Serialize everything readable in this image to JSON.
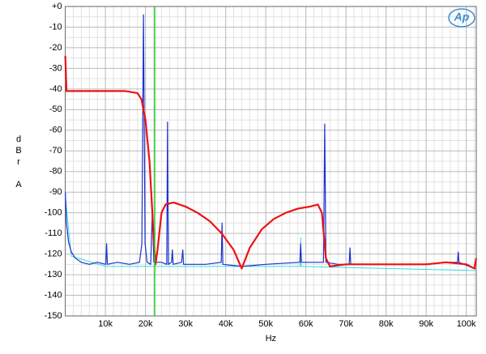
{
  "chart_data": {
    "type": "line",
    "xlabel": "Hz",
    "ylabel": "dBr A",
    "logo": "Ap",
    "xlim": [
      0,
      102500
    ],
    "ylim": [
      -150,
      0
    ],
    "xticks": [
      {
        "value": 10000,
        "label": "10k"
      },
      {
        "value": 20000,
        "label": "20k"
      },
      {
        "value": 30000,
        "label": "30k"
      },
      {
        "value": 40000,
        "label": "40k"
      },
      {
        "value": 50000,
        "label": "50k"
      },
      {
        "value": 60000,
        "label": "60k"
      },
      {
        "value": 70000,
        "label": "70k"
      },
      {
        "value": 80000,
        "label": "80k"
      },
      {
        "value": 90000,
        "label": "90k"
      },
      {
        "value": 100000,
        "label": "100k"
      }
    ],
    "yticks": [
      {
        "value": 0,
        "label": "+0"
      },
      -10,
      -20,
      -30,
      -40,
      -50,
      -60,
      -70,
      -80,
      -90,
      -100,
      -110,
      -120,
      -130,
      -140,
      -150
    ],
    "grid": true,
    "marker_line": {
      "value": 22300,
      "color": "#22cc22"
    },
    "series": [
      {
        "color": "#33dddd",
        "width": 1,
        "x": [
          0,
          1500,
          10000,
          50000,
          58600,
          58700,
          58800,
          102500
        ],
        "values": [
          -92,
          -121,
          -126,
          -126,
          -126,
          -112,
          -126,
          -128
        ]
      },
      {
        "color": "#1a2fd0",
        "width": 1.2,
        "x": [
          0,
          300,
          800,
          1500,
          2500,
          4000,
          6000,
          8000,
          10100,
          10300,
          10500,
          13000,
          16000,
          18500,
          19100,
          19500,
          19900,
          20400,
          21300,
          21700,
          22100,
          24000,
          25300,
          25500,
          25700,
          26500,
          26700,
          26900,
          29000,
          29300,
          29500,
          35000,
          38900,
          39100,
          39300,
          44000,
          50000,
          58500,
          58700,
          58900,
          64400,
          64700,
          65000,
          68000,
          70800,
          71000,
          71200,
          80000,
          90000,
          95000,
          97800,
          98000,
          98200,
          102000,
          102500
        ],
        "values": [
          -90,
          -105,
          -114,
          -119,
          -122,
          -124,
          -125,
          -124,
          -125,
          -115,
          -125,
          -124,
          -125,
          -124,
          -115,
          -4,
          -115,
          -124,
          -125,
          -100,
          -124,
          -124,
          -125,
          -56,
          -125,
          -124,
          -118,
          -125,
          -124,
          -118,
          -125,
          -125,
          -124,
          -105,
          -125,
          -126,
          -125,
          -124,
          -115,
          -124,
          -124,
          -57,
          -124,
          -125,
          -125,
          -117,
          -125,
          -125,
          -125,
          -124,
          -124,
          -119,
          -124,
          -127,
          -127
        ]
      },
      {
        "color": "#ee1111",
        "width": 2.2,
        "x": [
          0,
          300,
          5000,
          10000,
          15000,
          18000,
          19000,
          20000,
          21000,
          22000,
          22500,
          23000,
          24000,
          25000,
          27000,
          30000,
          33000,
          36000,
          39000,
          42000,
          44000,
          46000,
          49000,
          52000,
          55000,
          58000,
          61000,
          63000,
          64000,
          65000,
          66000,
          70000,
          80000,
          90000,
          95000,
          100000,
          102000,
          102500
        ],
        "values": [
          -24,
          -41,
          -41,
          -41,
          -41,
          -42,
          -45,
          -55,
          -75,
          -110,
          -125,
          -118,
          -100,
          -96,
          -95,
          -97,
          -100,
          -104,
          -110,
          -118,
          -127,
          -117,
          -108,
          -103,
          -100,
          -98,
          -97,
          -96,
          -100,
          -122,
          -126,
          -125,
          -125,
          -125,
          -124,
          -125,
          -127,
          -122
        ]
      }
    ]
  }
}
